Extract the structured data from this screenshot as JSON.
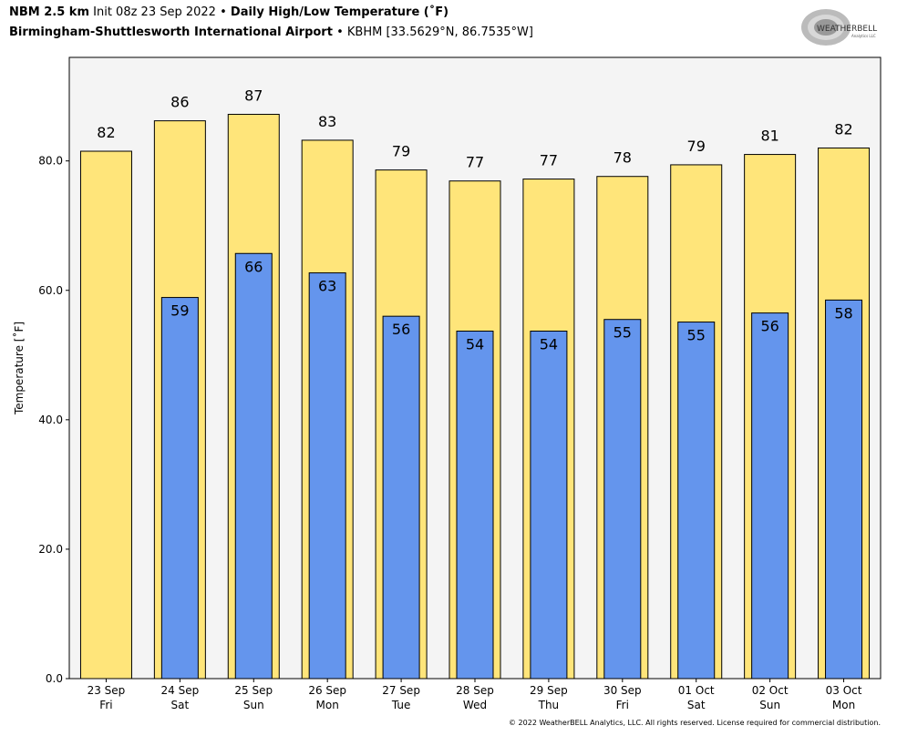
{
  "header": {
    "model": "NBM 2.5 km",
    "init": "Init 08z 23 Sep 2022",
    "sep": "•",
    "product": "Daily High/Low Temperature (˚F)",
    "station_name": "Birmingham-Shuttlesworth International Airport",
    "station_info": "KBHM [33.5629°N, 86.7535°W]"
  },
  "logo": {
    "text": "WeatherBELL",
    "subtext": "Analytics LLC"
  },
  "footer": "© 2022 WeatherBELL Analytics, LLC. All rights reserved. License required for commercial distribution.",
  "colors": {
    "high": "#FFE57A",
    "low": "#6495ED",
    "plot_bg": "#F4F4F4"
  },
  "chart_data": {
    "type": "bar",
    "title": "Daily High/Low Temperature (˚F)",
    "ylabel": "Temperature [˚F]",
    "xlabel": "",
    "ylim": [
      0,
      96
    ],
    "yticks": [
      0,
      20,
      40,
      60,
      80
    ],
    "ytick_labels": [
      "0.0",
      "20.0",
      "40.0",
      "60.0",
      "80.0"
    ],
    "categories": [
      {
        "date": "23 Sep",
        "day": "Fri"
      },
      {
        "date": "24 Sep",
        "day": "Sat"
      },
      {
        "date": "25 Sep",
        "day": "Sun"
      },
      {
        "date": "26 Sep",
        "day": "Mon"
      },
      {
        "date": "27 Sep",
        "day": "Tue"
      },
      {
        "date": "28 Sep",
        "day": "Wed"
      },
      {
        "date": "29 Sep",
        "day": "Thu"
      },
      {
        "date": "30 Sep",
        "day": "Fri"
      },
      {
        "date": "01 Oct",
        "day": "Sat"
      },
      {
        "date": "02 Oct",
        "day": "Sun"
      },
      {
        "date": "03 Oct",
        "day": "Mon"
      }
    ],
    "series": [
      {
        "name": "High",
        "values": [
          81.5,
          86.2,
          87.2,
          83.2,
          78.6,
          76.9,
          77.2,
          77.6,
          79.4,
          81.0,
          82.0
        ],
        "labels": [
          "82",
          "86",
          "87",
          "83",
          "79",
          "77",
          "77",
          "78",
          "79",
          "81",
          "82"
        ]
      },
      {
        "name": "Low",
        "values": [
          null,
          58.9,
          65.7,
          62.7,
          56.0,
          53.7,
          53.7,
          55.5,
          55.1,
          56.5,
          58.5
        ],
        "labels": [
          null,
          "59",
          "66",
          "63",
          "56",
          "54",
          "54",
          "55",
          "55",
          "56",
          "58"
        ]
      }
    ]
  }
}
